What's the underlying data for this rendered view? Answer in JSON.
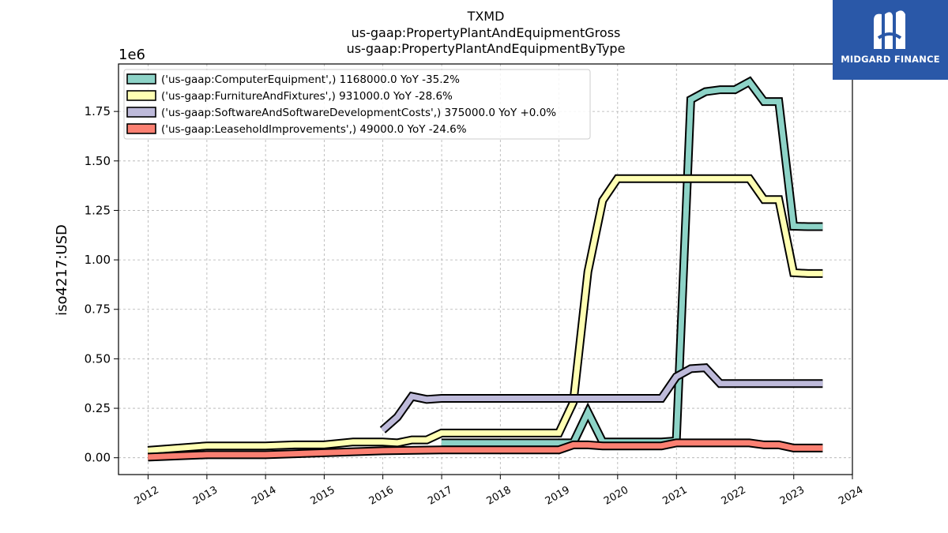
{
  "chart_data": {
    "type": "line",
    "title_lines": [
      "TXMD",
      "us-gaap:PropertyPlantAndEquipmentGross",
      "us-gaap:PropertyPlantAndEquipmentByType"
    ],
    "ylabel": "iso4217:USD",
    "y_offset_label": "1e6",
    "xlim": [
      "2011-07-01",
      "2024-01-01"
    ],
    "ylim": [
      -85000,
      1990000
    ],
    "x_ticks": [
      "2012",
      "2013",
      "2014",
      "2015",
      "2016",
      "2017",
      "2018",
      "2019",
      "2020",
      "2021",
      "2022",
      "2023",
      "2024"
    ],
    "y_ticks": [
      0,
      250000,
      500000,
      750000,
      1000000,
      1250000,
      1500000,
      1750000
    ],
    "y_tick_labels": [
      "0.00",
      "0.25",
      "0.50",
      "0.75",
      "1.00",
      "1.25",
      "1.50",
      "1.75"
    ],
    "grid": true,
    "legend_position": "upper-left",
    "series": [
      {
        "name": "('us-gaap:ComputerEquipment',) 1168000.0 YoY -35.2%",
        "color": "#8dd3c7",
        "points": [
          [
            "2016-12-31",
            75000
          ],
          [
            "2017-03-31",
            75000
          ],
          [
            "2017-06-30",
            75000
          ],
          [
            "2017-09-30",
            75000
          ],
          [
            "2017-12-31",
            75000
          ],
          [
            "2018-03-31",
            75000
          ],
          [
            "2018-06-30",
            75000
          ],
          [
            "2018-09-30",
            75000
          ],
          [
            "2018-12-31",
            75000
          ],
          [
            "2019-03-31",
            75000
          ],
          [
            "2019-06-30",
            230000
          ],
          [
            "2019-09-30",
            80000
          ],
          [
            "2019-12-31",
            80000
          ],
          [
            "2020-03-31",
            80000
          ],
          [
            "2020-06-30",
            80000
          ],
          [
            "2020-09-30",
            80000
          ],
          [
            "2020-12-31",
            85000
          ],
          [
            "2021-03-31",
            1810000
          ],
          [
            "2021-06-30",
            1850000
          ],
          [
            "2021-09-30",
            1860000
          ],
          [
            "2021-12-31",
            1860000
          ],
          [
            "2022-03-31",
            1900000
          ],
          [
            "2022-06-30",
            1800000
          ],
          [
            "2022-09-30",
            1800000
          ],
          [
            "2022-12-31",
            1170000
          ],
          [
            "2023-03-31",
            1168000
          ],
          [
            "2023-06-30",
            1168000
          ]
        ]
      },
      {
        "name": "('us-gaap:FurnitureAndFixtures',) 931000.0 YoY -28.6%",
        "color": "#ffffb3",
        "points": [
          [
            "2011-12-31",
            37000
          ],
          [
            "2012-12-31",
            60000
          ],
          [
            "2013-12-31",
            60000
          ],
          [
            "2014-06-30",
            65000
          ],
          [
            "2014-12-31",
            65000
          ],
          [
            "2015-06-30",
            80000
          ],
          [
            "2015-12-31",
            80000
          ],
          [
            "2016-03-31",
            75000
          ],
          [
            "2016-06-30",
            90000
          ],
          [
            "2016-09-30",
            90000
          ],
          [
            "2016-12-31",
            125000
          ],
          [
            "2017-03-31",
            125000
          ],
          [
            "2017-06-30",
            125000
          ],
          [
            "2017-09-30",
            125000
          ],
          [
            "2017-12-31",
            125000
          ],
          [
            "2018-03-31",
            125000
          ],
          [
            "2018-06-30",
            125000
          ],
          [
            "2018-09-30",
            125000
          ],
          [
            "2018-12-31",
            125000
          ],
          [
            "2019-03-31",
            280000
          ],
          [
            "2019-06-30",
            940000
          ],
          [
            "2019-09-30",
            1300000
          ],
          [
            "2019-12-31",
            1410000
          ],
          [
            "2020-03-31",
            1410000
          ],
          [
            "2020-06-30",
            1410000
          ],
          [
            "2020-09-30",
            1410000
          ],
          [
            "2020-12-31",
            1410000
          ],
          [
            "2021-03-31",
            1410000
          ],
          [
            "2021-06-30",
            1410000
          ],
          [
            "2021-09-30",
            1410000
          ],
          [
            "2021-12-31",
            1410000
          ],
          [
            "2022-03-31",
            1410000
          ],
          [
            "2022-06-30",
            1305000
          ],
          [
            "2022-09-30",
            1305000
          ],
          [
            "2022-12-31",
            935000
          ],
          [
            "2023-03-31",
            931000
          ],
          [
            "2023-06-30",
            931000
          ]
        ]
      },
      {
        "name": "('us-gaap:SoftwareAndSoftwareDevelopmentCosts',) 375000.0 YoY +0.0%",
        "color": "#bebada",
        "points": [
          [
            "2015-12-31",
            140000
          ],
          [
            "2016-03-31",
            205000
          ],
          [
            "2016-06-30",
            310000
          ],
          [
            "2016-09-30",
            295000
          ],
          [
            "2016-12-31",
            300000
          ],
          [
            "2017-03-31",
            300000
          ],
          [
            "2017-06-30",
            300000
          ],
          [
            "2017-09-30",
            300000
          ],
          [
            "2017-12-31",
            300000
          ],
          [
            "2018-03-31",
            300000
          ],
          [
            "2018-06-30",
            300000
          ],
          [
            "2018-09-30",
            300000
          ],
          [
            "2018-12-31",
            300000
          ],
          [
            "2019-03-31",
            300000
          ],
          [
            "2019-06-30",
            300000
          ],
          [
            "2019-09-30",
            300000
          ],
          [
            "2019-12-31",
            300000
          ],
          [
            "2020-03-31",
            300000
          ],
          [
            "2020-06-30",
            300000
          ],
          [
            "2020-09-30",
            300000
          ],
          [
            "2020-12-31",
            410000
          ],
          [
            "2021-03-31",
            450000
          ],
          [
            "2021-06-30",
            455000
          ],
          [
            "2021-09-30",
            375000
          ],
          [
            "2021-12-31",
            375000
          ],
          [
            "2022-03-31",
            375000
          ],
          [
            "2022-06-30",
            375000
          ],
          [
            "2022-09-30",
            375000
          ],
          [
            "2022-12-31",
            375000
          ],
          [
            "2023-03-31",
            375000
          ],
          [
            "2023-06-30",
            375000
          ]
        ]
      },
      {
        "name": "('us-gaap:LeaseholdImprovements',) 49000.0 YoY -24.6%",
        "color": "#fb8072",
        "points": [
          [
            "2011-12-31",
            3000
          ],
          [
            "2012-12-31",
            15000
          ],
          [
            "2013-12-31",
            15000
          ],
          [
            "2014-12-31",
            25000
          ],
          [
            "2015-12-31",
            35000
          ],
          [
            "2016-12-31",
            40000
          ],
          [
            "2017-03-31",
            40000
          ],
          [
            "2017-06-30",
            40000
          ],
          [
            "2017-09-30",
            40000
          ],
          [
            "2017-12-31",
            40000
          ],
          [
            "2018-03-31",
            40000
          ],
          [
            "2018-06-30",
            40000
          ],
          [
            "2018-09-30",
            40000
          ],
          [
            "2018-12-31",
            40000
          ],
          [
            "2019-03-31",
            65000
          ],
          [
            "2019-06-30",
            65000
          ],
          [
            "2019-09-30",
            60000
          ],
          [
            "2019-12-31",
            60000
          ],
          [
            "2020-03-31",
            60000
          ],
          [
            "2020-06-30",
            60000
          ],
          [
            "2020-09-30",
            60000
          ],
          [
            "2020-12-31",
            75000
          ],
          [
            "2021-03-31",
            75000
          ],
          [
            "2021-06-30",
            75000
          ],
          [
            "2021-09-30",
            75000
          ],
          [
            "2021-12-31",
            75000
          ],
          [
            "2022-03-31",
            75000
          ],
          [
            "2022-06-30",
            65000
          ],
          [
            "2022-09-30",
            65000
          ],
          [
            "2022-12-31",
            49000
          ],
          [
            "2023-03-31",
            49000
          ],
          [
            "2023-06-30",
            49000
          ]
        ]
      }
    ]
  },
  "logo": {
    "text": "MIDGARD FINANCE",
    "icon": "midgard-logo-icon",
    "background": "#2a58a8"
  }
}
